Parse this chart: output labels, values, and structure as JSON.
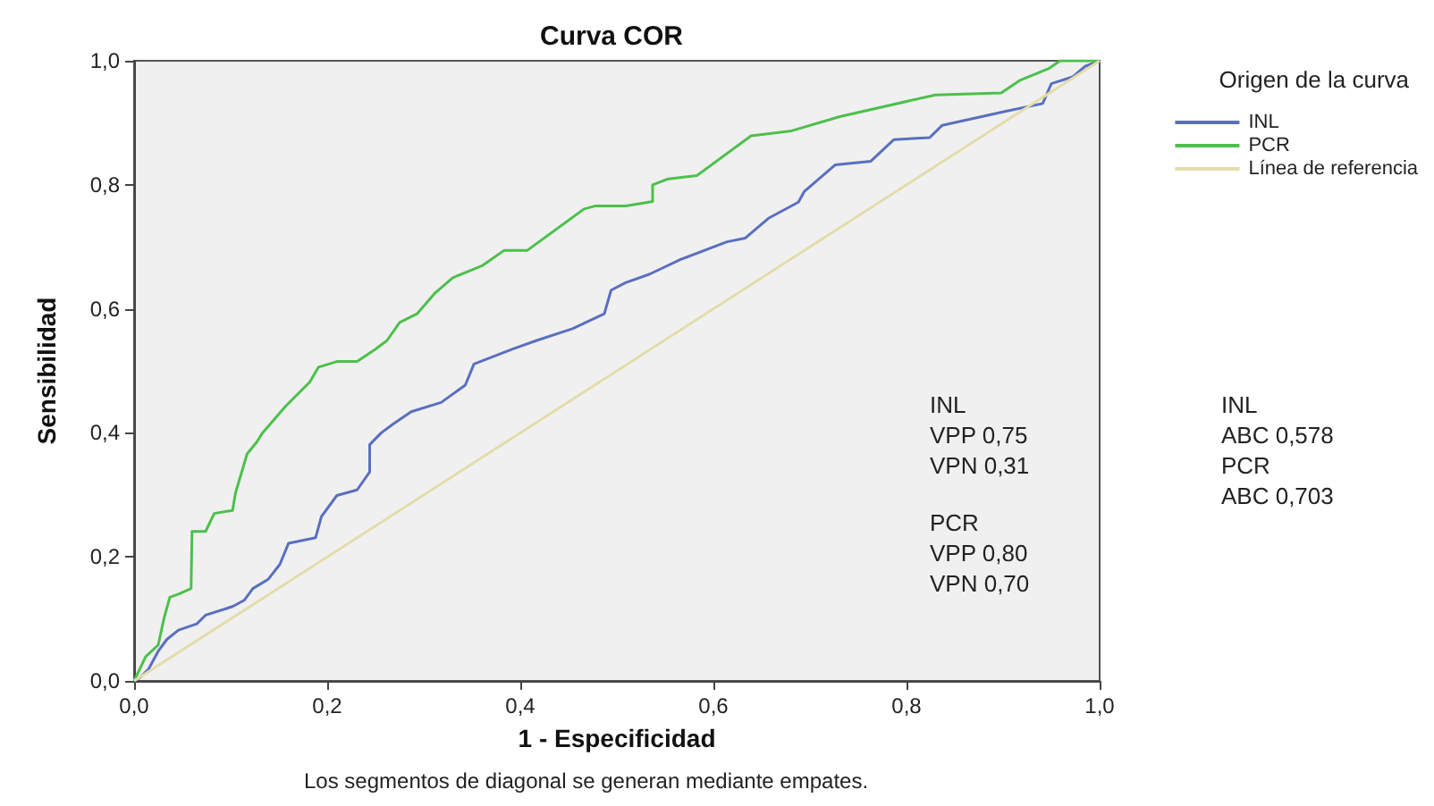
{
  "chart_data": {
    "type": "line",
    "title": "Curva COR",
    "xlabel": "1 - Especificidad",
    "ylabel": "Sensibilidad",
    "legend_title": "Origen de la curva",
    "legend": "top right",
    "grid": false,
    "marker": "none",
    "line_style": "solid",
    "xlim": [
      0,
      1
    ],
    "ylim": [
      0,
      1
    ],
    "xticks": [
      {
        "value": 0,
        "label": "0,0"
      },
      {
        "value": 0.2,
        "label": "0,2"
      },
      {
        "value": 0.4,
        "label": "0,4"
      },
      {
        "value": 0.6,
        "label": "0,6"
      },
      {
        "value": 0.8,
        "label": "0,8"
      },
      {
        "value": 1,
        "label": "1,0"
      }
    ],
    "yticks": [
      {
        "value": 0,
        "label": "0,0"
      },
      {
        "value": 0.2,
        "label": "0,2"
      },
      {
        "value": 0.4,
        "label": "0,4"
      },
      {
        "value": 0.6,
        "label": "0,6"
      },
      {
        "value": 0.8,
        "label": "0,8"
      },
      {
        "value": 1,
        "label": "1,0"
      }
    ],
    "series": [
      {
        "name": "INL",
        "color": "#5a6fc0",
        "x": [
          0,
          0.006,
          0.015,
          0.025,
          0.034,
          0.046,
          0.065,
          0.074,
          0.102,
          0.114,
          0.123,
          0.139,
          0.151,
          0.16,
          0.188,
          0.194,
          0.21,
          0.231,
          0.244,
          0.244,
          0.256,
          0.268,
          0.287,
          0.318,
          0.343,
          0.352,
          0.392,
          0.417,
          0.454,
          0.487,
          0.494,
          0.509,
          0.534,
          0.565,
          0.614,
          0.633,
          0.657,
          0.688,
          0.694,
          0.726,
          0.763,
          0.787,
          0.824,
          0.837,
          0.904,
          0.941,
          0.95,
          0.972,
          0.985,
          1
        ],
        "values": [
          0,
          0.005,
          0.019,
          0.048,
          0.067,
          0.082,
          0.092,
          0.106,
          0.12,
          0.13,
          0.149,
          0.164,
          0.188,
          0.222,
          0.231,
          0.265,
          0.299,
          0.308,
          0.337,
          0.381,
          0.4,
          0.414,
          0.434,
          0.449,
          0.477,
          0.511,
          0.535,
          0.549,
          0.568,
          0.592,
          0.63,
          0.642,
          0.656,
          0.679,
          0.708,
          0.714,
          0.746,
          0.772,
          0.789,
          0.832,
          0.838,
          0.873,
          0.876,
          0.896,
          0.919,
          0.931,
          0.963,
          0.974,
          0.991,
          1
        ]
      },
      {
        "name": "PCR",
        "color": "#4cc04c",
        "x": [
          0,
          0.012,
          0.025,
          0.031,
          0.037,
          0.046,
          0.059,
          0.06,
          0.074,
          0.083,
          0.102,
          0.105,
          0.117,
          0.127,
          0.133,
          0.157,
          0.182,
          0.191,
          0.21,
          0.231,
          0.25,
          0.262,
          0.275,
          0.293,
          0.312,
          0.33,
          0.361,
          0.383,
          0.407,
          0.466,
          0.478,
          0.509,
          0.537,
          0.537,
          0.552,
          0.583,
          0.639,
          0.681,
          0.731,
          0.83,
          0.898,
          0.917,
          0.948,
          0.959,
          1
        ],
        "values": [
          0,
          0.039,
          0.058,
          0.101,
          0.135,
          0.14,
          0.149,
          0.241,
          0.241,
          0.27,
          0.275,
          0.303,
          0.366,
          0.385,
          0.4,
          0.443,
          0.482,
          0.506,
          0.515,
          0.515,
          0.535,
          0.549,
          0.578,
          0.592,
          0.626,
          0.65,
          0.67,
          0.694,
          0.694,
          0.761,
          0.766,
          0.766,
          0.773,
          0.8,
          0.809,
          0.815,
          0.879,
          0.887,
          0.91,
          0.945,
          0.948,
          0.968,
          0.988,
          1,
          1
        ]
      },
      {
        "name": "Línea de referencia",
        "color": "#e3dcab",
        "x": [
          0,
          1
        ],
        "values": [
          0,
          1
        ]
      }
    ],
    "annotations": [
      "INL\nVPP 0,75\nVPN 0,31",
      "PCR\nVPP 0,80\nVPN 0,70",
      "INL\nABC 0,578\nPCR\nABC 0,703",
      "Los segmentos de diagonal se generan mediante empates."
    ]
  }
}
